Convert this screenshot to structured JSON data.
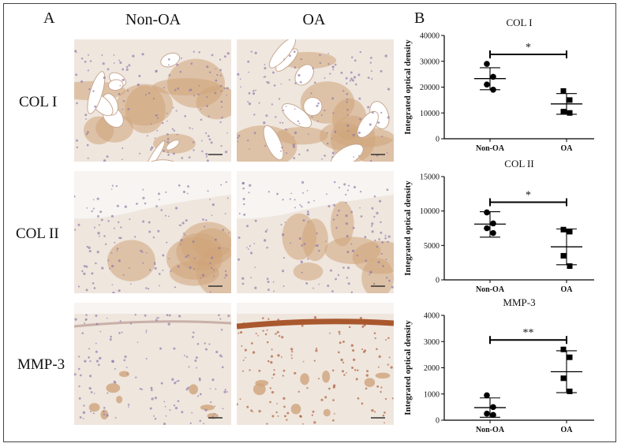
{
  "panel_a": {
    "letter": "A",
    "columns": [
      "Non-OA",
      "OA"
    ],
    "rows": [
      "COL I",
      "COL II",
      "MMP-3"
    ]
  },
  "panel_b": {
    "letter": "B"
  },
  "colors": {
    "tissue": "#efe6de",
    "stain": "#cfa47a",
    "stain_dark": "#a9582e",
    "nucleus": "#8a76a8",
    "axis": "#000000"
  },
  "chart_data": [
    {
      "type": "scatter",
      "title": "COL I",
      "ylabel": "Integrated optical density",
      "categories": [
        "Non-OA",
        "OA"
      ],
      "ylim": [
        0,
        40000
      ],
      "yticks": [
        0,
        10000,
        20000,
        30000,
        40000
      ],
      "series": [
        {
          "category": "Non-OA",
          "marker": "circle",
          "values": [
            29000,
            24000,
            21000,
            19000
          ],
          "mean": 23300,
          "sd_upper": 27500,
          "sd_lower": 19000
        },
        {
          "category": "OA",
          "marker": "square",
          "values": [
            18500,
            15000,
            10500,
            10000
          ],
          "mean": 13500,
          "sd_upper": 17500,
          "sd_lower": 9500
        }
      ],
      "significance": "*"
    },
    {
      "type": "scatter",
      "title": "COL II",
      "ylabel": "Integrated optical density",
      "categories": [
        "Non-OA",
        "OA"
      ],
      "ylim": [
        0,
        15000
      ],
      "yticks": [
        0,
        5000,
        10000,
        15000
      ],
      "series": [
        {
          "category": "Non-OA",
          "marker": "circle",
          "values": [
            9800,
            8200,
            7500,
            6800
          ],
          "mean": 8100,
          "sd_upper": 9900,
          "sd_lower": 6200
        },
        {
          "category": "OA",
          "marker": "square",
          "values": [
            7300,
            7000,
            3500,
            2000
          ],
          "mean": 4800,
          "sd_upper": 7400,
          "sd_lower": 2200
        }
      ],
      "significance": "*"
    },
    {
      "type": "scatter",
      "title": "MMP-3",
      "ylabel": "Integrated optical density",
      "categories": [
        "Non-OA",
        "OA"
      ],
      "ylim": [
        0,
        4000
      ],
      "yticks": [
        0,
        1000,
        2000,
        3000,
        4000
      ],
      "series": [
        {
          "category": "Non-OA",
          "marker": "circle",
          "values": [
            950,
            500,
            250,
            200
          ],
          "mean": 480,
          "sd_upper": 850,
          "sd_lower": 110
        },
        {
          "category": "OA",
          "marker": "square",
          "values": [
            2700,
            2400,
            1600,
            1100
          ],
          "mean": 1850,
          "sd_upper": 2650,
          "sd_lower": 1050
        }
      ],
      "significance": "**"
    }
  ]
}
